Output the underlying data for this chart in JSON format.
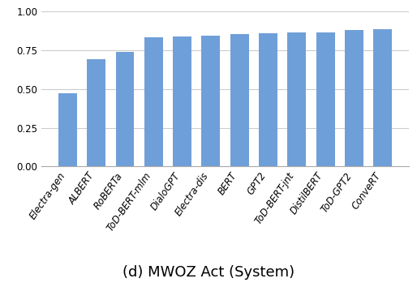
{
  "categories": [
    "Electra-gen",
    "ALBERT",
    "RoBERTa",
    "ToD-BERT-mlm",
    "DialoGPT",
    "Electra-dis",
    "BERT",
    "GPT2",
    "ToD-BERT-jnt",
    "DistilBERT",
    "ToD-GPT2",
    "ConveRT"
  ],
  "values": [
    0.47,
    0.69,
    0.74,
    0.832,
    0.84,
    0.845,
    0.855,
    0.862,
    0.864,
    0.867,
    0.882,
    0.887
  ],
  "bar_color": "#6f9fd8",
  "title": "(d) MWOZ Act (System)",
  "ylim": [
    0.0,
    1.0
  ],
  "yticks": [
    0.0,
    0.25,
    0.5,
    0.75,
    1.0
  ],
  "grid_color": "#cccccc",
  "background_color": "#ffffff",
  "title_fontsize": 13,
  "tick_fontsize": 8.5,
  "label_rotation": 55
}
